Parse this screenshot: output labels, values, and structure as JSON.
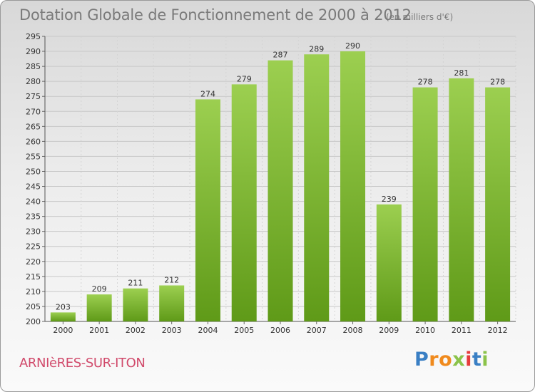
{
  "header": {
    "title": "Dotation Globale de Fonctionnement de 2000 à 2012",
    "unit": "(en milliers d'€)"
  },
  "footer": {
    "commune": "ARNIèRES-SUR-ITON",
    "logo_letters": [
      "P",
      "r",
      "o",
      "x",
      "i",
      "t",
      "i"
    ]
  },
  "colors": {
    "bar_top": "#9ccf50",
    "bar_bottom": "#5f9a18",
    "commune": "#d14a6b",
    "logo": [
      "#3a7fc4",
      "#f08a1d",
      "#f08a1d",
      "#8bc34a",
      "#e63b3b",
      "#3a7fc4",
      "#8bc34a"
    ]
  },
  "chart_data": {
    "type": "bar",
    "categories": [
      "2000",
      "2001",
      "2002",
      "2003",
      "2004",
      "2005",
      "2006",
      "2007",
      "2008",
      "2009",
      "2010",
      "2011",
      "2012"
    ],
    "values": [
      203,
      209,
      211,
      212,
      274,
      279,
      287,
      289,
      290,
      239,
      278,
      281,
      278
    ],
    "ylim": [
      200,
      295
    ],
    "yticks": [
      200,
      205,
      210,
      215,
      220,
      225,
      230,
      235,
      240,
      245,
      250,
      255,
      260,
      265,
      270,
      275,
      280,
      285,
      290,
      295
    ],
    "grid": true,
    "data_labels": true
  }
}
